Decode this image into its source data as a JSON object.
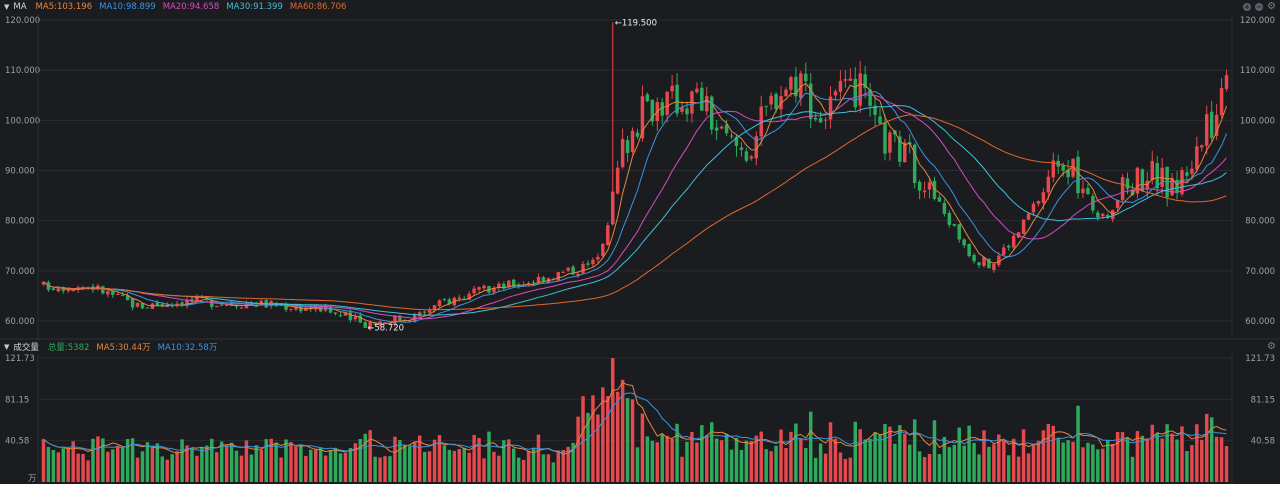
{
  "colors": {
    "up": "#e5484d",
    "down": "#2dab5c",
    "ma5": "#e8863a",
    "ma10": "#3b93e0",
    "ma20": "#d44dbf",
    "ma30": "#3fc0d6",
    "ma60": "#e0682c",
    "grid": "#2a2c31",
    "bg": "#1b1c20"
  },
  "price_panel": {
    "title": "MA",
    "legend": [
      {
        "label": "MA5:103.196",
        "color": "#e8863a"
      },
      {
        "label": "MA10:98.899",
        "color": "#3b93e0"
      },
      {
        "label": "MA20:94.658",
        "color": "#d44dbf"
      },
      {
        "label": "MA30:91.399",
        "color": "#3fc0d6"
      },
      {
        "label": "MA60:86.706",
        "color": "#e0682c"
      }
    ],
    "controls": [
      "plus-icon",
      "minus-icon",
      "gear-icon"
    ]
  },
  "volume_panel": {
    "title": "成交量",
    "legend": [
      {
        "label": "总量:5382",
        "color": "#2dab5c"
      },
      {
        "label": "MA5:30.44万",
        "color": "#e8863a"
      },
      {
        "label": "MA10:32.58万",
        "color": "#3b93e0"
      }
    ],
    "controls": [
      "gear-icon"
    ]
  },
  "chart_data": [
    {
      "type": "candlestick",
      "y_ticks": [
        "120.000",
        "110.000",
        "100.000",
        "90.000",
        "80.000",
        "70.000",
        "60.000"
      ],
      "ylim": [
        57,
        122
      ],
      "annotations": [
        {
          "label": "←119.500",
          "value": 119.5
        },
        {
          "label": "←58.720",
          "value": 58.72
        }
      ],
      "series_labels": [
        "MA5",
        "MA10",
        "MA20",
        "MA30",
        "MA60"
      ],
      "trend_anchors": [
        {
          "t": 0,
          "v": 67
        },
        {
          "t": 0.04,
          "v": 67
        },
        {
          "t": 0.08,
          "v": 63
        },
        {
          "t": 0.12,
          "v": 64
        },
        {
          "t": 0.18,
          "v": 63.5
        },
        {
          "t": 0.235,
          "v": 62.5
        },
        {
          "t": 0.27,
          "v": 59.5
        },
        {
          "t": 0.315,
          "v": 61
        },
        {
          "t": 0.34,
          "v": 64
        },
        {
          "t": 0.38,
          "v": 66.5
        },
        {
          "t": 0.41,
          "v": 68
        },
        {
          "t": 0.445,
          "v": 70
        },
        {
          "t": 0.465,
          "v": 71.5
        },
        {
          "t": 0.475,
          "v": 78
        },
        {
          "t": 0.49,
          "v": 95
        },
        {
          "t": 0.51,
          "v": 103
        },
        {
          "t": 0.53,
          "v": 104
        },
        {
          "t": 0.555,
          "v": 104.5
        },
        {
          "t": 0.575,
          "v": 96
        },
        {
          "t": 0.595,
          "v": 94
        },
        {
          "t": 0.62,
          "v": 106
        },
        {
          "t": 0.64,
          "v": 109
        },
        {
          "t": 0.655,
          "v": 100
        },
        {
          "t": 0.67,
          "v": 104
        },
        {
          "t": 0.69,
          "v": 106
        },
        {
          "t": 0.705,
          "v": 97
        },
        {
          "t": 0.73,
          "v": 93
        },
        {
          "t": 0.76,
          "v": 82
        },
        {
          "t": 0.785,
          "v": 73
        },
        {
          "t": 0.8,
          "v": 71
        },
        {
          "t": 0.825,
          "v": 78
        },
        {
          "t": 0.845,
          "v": 86
        },
        {
          "t": 0.86,
          "v": 94
        },
        {
          "t": 0.875,
          "v": 87
        },
        {
          "t": 0.895,
          "v": 80
        },
        {
          "t": 0.915,
          "v": 87
        },
        {
          "t": 0.935,
          "v": 90
        },
        {
          "t": 0.955,
          "v": 86
        },
        {
          "t": 0.975,
          "v": 94
        },
        {
          "t": 0.99,
          "v": 101
        },
        {
          "t": 1,
          "v": 109
        }
      ],
      "last_close": 109
    },
    {
      "type": "bar",
      "y_ticks": [
        "121.73",
        "81.15",
        "40.58"
      ],
      "ylim": [
        0,
        121.73
      ],
      "unit_label": "万"
    }
  ]
}
